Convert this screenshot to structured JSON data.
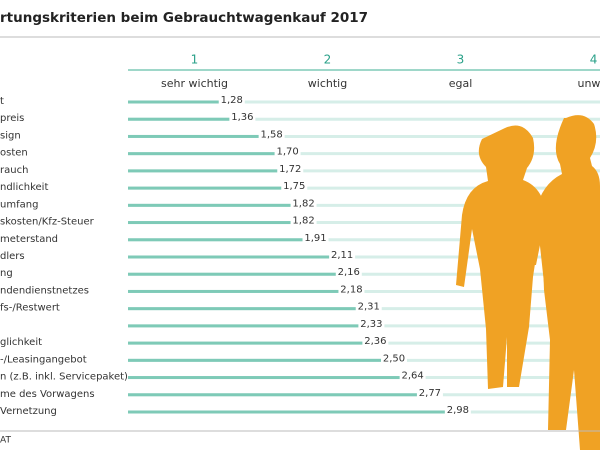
{
  "chart_data": {
    "type": "bar",
    "orientation": "horizontal",
    "title": "rtungskriterien beim Gebrauchtwagenkauf 2017",
    "categories": [
      "t",
      "preis",
      "sign",
      "osten",
      "rauch",
      "ndlichkeit",
      "umfang",
      "skosten/Kfz-Steuer",
      "meterstand",
      "dlers",
      "ng",
      "ndendienstnetzes",
      "fs-/Restwert",
      null,
      "glichkeit",
      "-/Leasingangebot",
      "n (z.B. inkl. Servicepaket)",
      "me des Vorwagens",
      "Vernetzung"
    ],
    "values": [
      1.28,
      1.36,
      1.58,
      1.7,
      1.72,
      1.75,
      1.82,
      1.82,
      1.91,
      2.11,
      2.16,
      2.18,
      2.31,
      2.33,
      2.36,
      2.5,
      2.64,
      2.77,
      2.98
    ],
    "value_labels": [
      "1,28",
      "1,36",
      "1,58",
      "1,70",
      "1,72",
      "1,75",
      "1,82",
      "1,82",
      "1,91",
      "2,11",
      "2,16",
      "2,18",
      "2,31",
      "2,33",
      "2,36",
      "2,50",
      "2,64",
      "2,77",
      "2,98"
    ],
    "color": "#7ecab7",
    "xlim": [
      0.5,
      4.03
    ],
    "xticks": [
      1,
      2,
      3,
      4
    ],
    "scale_labels": [
      "sehr wichtig",
      "wichtig",
      "egal",
      "unwic"
    ],
    "source": "AT"
  }
}
